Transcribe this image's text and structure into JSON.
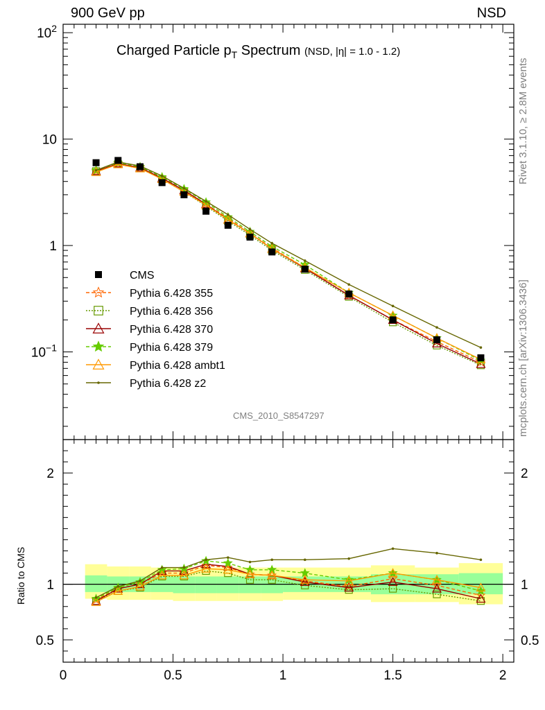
{
  "header": {
    "left": "900 GeV pp",
    "right": "NSD"
  },
  "title": {
    "main": "Charged Particle p",
    "sub": "T",
    "main2": " Spectrum",
    "extra": "(NSD, |η| = 1.0 - 1.2)"
  },
  "side_labels": {
    "rivet": "Rivet 3.1.10, ≥ 2.8M events",
    "mcplots": "mcplots.cern.ch [arXiv:1306.3436]"
  },
  "analysis_id": "CMS_2010_S8547297",
  "ratio_ylabel": "Ratio to CMS",
  "colors": {
    "cms": "#000000",
    "p355": "#ff6600",
    "p356": "#669900",
    "p370": "#990000",
    "p379": "#66cc00",
    "ambt1": "#ff9900",
    "z2": "#666600",
    "band_outer": "#ffff99",
    "band_inner": "#99ff99"
  },
  "chart_data": {
    "type": "line",
    "x": [
      0.15,
      0.25,
      0.35,
      0.45,
      0.55,
      0.65,
      0.75,
      0.85,
      0.95,
      1.1,
      1.3,
      1.5,
      1.7,
      1.9
    ],
    "xlim": [
      0,
      2.05
    ],
    "xticks": [
      "0",
      "0.5",
      "1",
      "1.5",
      "2"
    ],
    "main": {
      "yscale": "log",
      "ylim": [
        0.015,
        120
      ],
      "yticks": [
        "10^-1",
        "1",
        "10",
        "10^2"
      ],
      "data": {
        "name": "CMS",
        "values": [
          6.0,
          6.3,
          5.5,
          3.9,
          3.0,
          2.1,
          1.55,
          1.2,
          0.87,
          0.6,
          0.35,
          0.2,
          0.13,
          0.088
        ]
      },
      "series": [
        {
          "name": "Pythia 6.428 355",
          "values": [
            5.0,
            5.9,
            5.4,
            4.3,
            3.3,
            2.45,
            1.8,
            1.3,
            0.95,
            0.62,
            0.34,
            0.2,
            0.125,
            0.08
          ]
        },
        {
          "name": "Pythia 6.428 356",
          "values": [
            5.0,
            5.8,
            5.3,
            4.2,
            3.2,
            2.35,
            1.7,
            1.25,
            0.9,
            0.59,
            0.33,
            0.19,
            0.115,
            0.075
          ]
        },
        {
          "name": "Pythia 6.428 370",
          "values": [
            5.0,
            5.9,
            5.4,
            4.3,
            3.3,
            2.45,
            1.75,
            1.3,
            0.93,
            0.61,
            0.34,
            0.2,
            0.12,
            0.077
          ]
        },
        {
          "name": "Pythia 6.428 379",
          "values": [
            5.1,
            6.0,
            5.5,
            4.4,
            3.4,
            2.55,
            1.85,
            1.35,
            0.98,
            0.66,
            0.36,
            0.22,
            0.135,
            0.083
          ]
        },
        {
          "name": "Pythia 6.428 ambt1",
          "values": [
            4.9,
            5.8,
            5.3,
            4.2,
            3.2,
            2.4,
            1.75,
            1.3,
            0.93,
            0.62,
            0.36,
            0.22,
            0.135,
            0.085
          ]
        },
        {
          "name": "Pythia 6.428 z2",
          "values": [
            5.1,
            6.1,
            5.6,
            4.5,
            3.45,
            2.6,
            1.95,
            1.42,
            1.05,
            0.72,
            0.43,
            0.27,
            0.17,
            0.11
          ]
        }
      ]
    },
    "ratio": {
      "ylim": [
        0.3,
        2.3
      ],
      "yticks": [
        "0.5",
        "1",
        "2"
      ],
      "band_edges": [
        0.1,
        0.2,
        0.3,
        0.4,
        0.5,
        0.6,
        0.7,
        0.8,
        0.9,
        1.0,
        1.2,
        1.4,
        1.6,
        1.8,
        2.0
      ],
      "band_outer": [
        [
          0.87,
          1.18
        ],
        [
          0.86,
          1.16
        ],
        [
          0.86,
          1.16
        ],
        [
          0.86,
          1.15
        ],
        [
          0.85,
          1.15
        ],
        [
          0.85,
          1.15
        ],
        [
          0.85,
          1.15
        ],
        [
          0.85,
          1.15
        ],
        [
          0.85,
          1.15
        ],
        [
          0.86,
          1.15
        ],
        [
          0.86,
          1.15
        ],
        [
          0.84,
          1.17
        ],
        [
          0.84,
          1.15
        ],
        [
          0.82,
          1.19
        ]
      ],
      "band_inner": [
        [
          0.93,
          1.08
        ],
        [
          0.93,
          1.07
        ],
        [
          0.93,
          1.07
        ],
        [
          0.93,
          1.07
        ],
        [
          0.92,
          1.07
        ],
        [
          0.92,
          1.07
        ],
        [
          0.92,
          1.07
        ],
        [
          0.92,
          1.07
        ],
        [
          0.92,
          1.07
        ],
        [
          0.93,
          1.07
        ],
        [
          0.93,
          1.07
        ],
        [
          0.91,
          1.09
        ],
        [
          0.91,
          1.09
        ],
        [
          0.91,
          1.1
        ]
      ],
      "series": [
        {
          "name": "Pythia 6.428 355",
          "values": [
            0.86,
            0.96,
            1.0,
            1.1,
            1.1,
            1.17,
            1.15,
            1.09,
            1.08,
            1.03,
            0.98,
            1.05,
            0.99,
            0.9
          ]
        },
        {
          "name": "Pythia 6.428 356",
          "values": [
            0.85,
            0.94,
            0.97,
            1.07,
            1.07,
            1.12,
            1.1,
            1.04,
            1.04,
            0.99,
            0.95,
            0.96,
            0.91,
            0.85
          ]
        },
        {
          "name": "Pythia 6.428 370",
          "values": [
            0.85,
            0.96,
            1.0,
            1.12,
            1.12,
            1.18,
            1.16,
            1.09,
            1.08,
            1.02,
            0.97,
            1.02,
            0.96,
            0.87
          ]
        },
        {
          "name": "Pythia 6.428 379",
          "values": [
            0.87,
            0.97,
            1.02,
            1.13,
            1.14,
            1.21,
            1.19,
            1.13,
            1.13,
            1.1,
            1.04,
            1.1,
            1.04,
            0.94
          ]
        },
        {
          "name": "Pythia 6.428 ambt1",
          "values": [
            0.84,
            0.94,
            0.98,
            1.08,
            1.08,
            1.14,
            1.13,
            1.09,
            1.08,
            1.04,
            1.03,
            1.1,
            1.04,
            0.97
          ]
        },
        {
          "name": "Pythia 6.428 z2",
          "values": [
            0.88,
            0.98,
            1.03,
            1.15,
            1.15,
            1.22,
            1.24,
            1.2,
            1.22,
            1.22,
            1.23,
            1.32,
            1.28,
            1.22
          ]
        }
      ]
    },
    "legend_position": "left-middle"
  }
}
